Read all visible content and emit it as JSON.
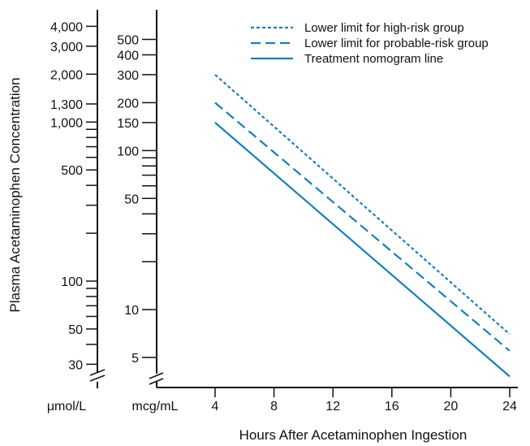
{
  "chart_data": {
    "type": "line",
    "title": "",
    "xlabel": "Hours After Acetaminophen Ingestion",
    "ylabel": "Plasma Acetaminophen Concentration",
    "y_unit_left": "μmol/L",
    "y_unit_right": "mcg/mL",
    "y_scale": "log",
    "x": [
      4,
      24
    ],
    "xticks": [
      4,
      8,
      12,
      16,
      20,
      24
    ],
    "xtick_labels": [
      "4",
      "8",
      "12",
      "16",
      "20",
      "24"
    ],
    "xlim": [
      4,
      24
    ],
    "ylim": [
      4,
      600
    ],
    "yticks_mcg": [
      500,
      400,
      300,
      200,
      150,
      100,
      50,
      10,
      5
    ],
    "ytick_labels_mcg": [
      "500",
      "400",
      "300",
      "200",
      "150",
      "100",
      "50",
      "10",
      "5"
    ],
    "yticks_umol": [
      "4,000",
      "3,000",
      "2,000",
      "1,300",
      "1,000",
      "500",
      "100",
      "50",
      "30"
    ],
    "series": [
      {
        "name": "Lower limit for high-risk group",
        "style": "dotted",
        "x": [
          4,
          24
        ],
        "values": [
          300,
          7
        ]
      },
      {
        "name": "Lower limit for probable-risk group",
        "style": "dashed",
        "x": [
          4,
          24
        ],
        "values": [
          200,
          5.5
        ]
      },
      {
        "name": "Treatment nomogram line",
        "style": "solid",
        "x": [
          4,
          24
        ],
        "values": [
          150,
          3.8
        ]
      }
    ],
    "legend_position": "top-right",
    "grid": false,
    "line_color": "#1a7fb5"
  }
}
